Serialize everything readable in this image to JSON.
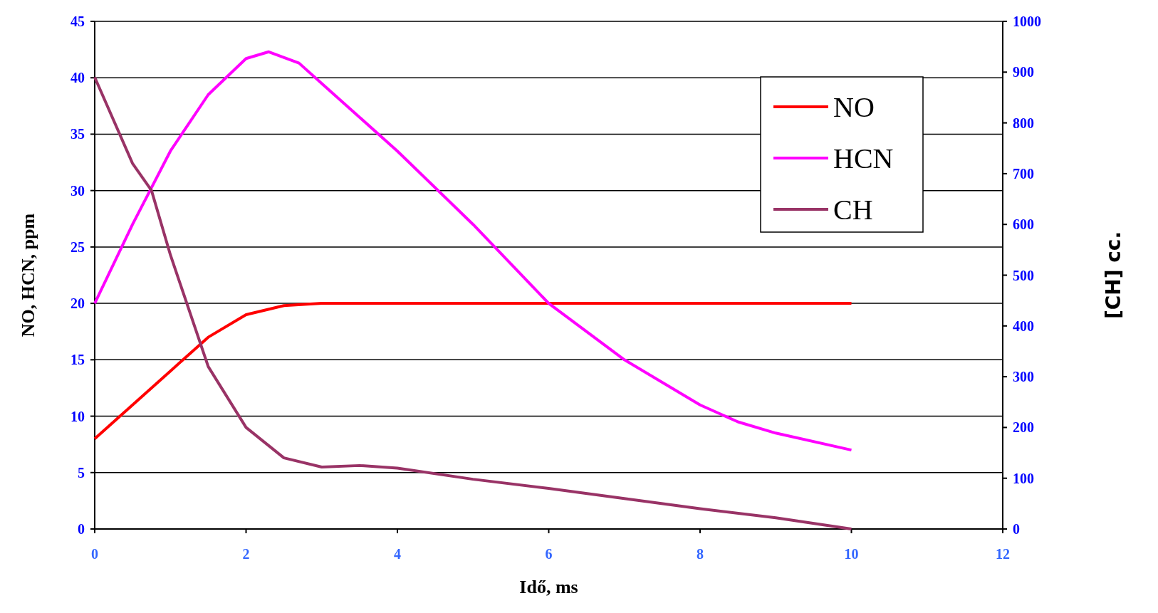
{
  "chart_data": {
    "type": "line",
    "xlabel": "Idő, ms",
    "ylabel": "NO, HCN, ppm",
    "y2label": "[CH] cc.",
    "xlim": [
      0,
      12
    ],
    "xticks": [
      0,
      2,
      4,
      6,
      8,
      10,
      12
    ],
    "ylim": [
      0,
      45
    ],
    "yticks": [
      0,
      5,
      10,
      15,
      20,
      25,
      30,
      35,
      40,
      45
    ],
    "y2lim": [
      0,
      1000
    ],
    "y2ticks": [
      0,
      100,
      200,
      300,
      400,
      500,
      600,
      700,
      800,
      900,
      1000
    ],
    "grid": "y",
    "legend": "top right",
    "line_style": "solid",
    "series": [
      {
        "name": "NO",
        "color": "#ff0000",
        "x": [
          0,
          0.5,
          1,
          1.5,
          2,
          2.5,
          3,
          3.5,
          4,
          5,
          6,
          7,
          8,
          9,
          10
        ],
        "values": [
          8,
          11,
          14,
          17,
          19,
          19.8,
          20,
          20,
          20,
          20,
          20,
          20,
          20,
          20,
          20
        ]
      },
      {
        "name": "HCN",
        "color": "#ff00ff",
        "x": [
          0,
          0.5,
          1,
          1.5,
          2,
          2.3,
          2.7,
          3,
          3.5,
          4,
          5,
          6,
          7,
          8,
          8.5,
          9,
          10
        ],
        "values": [
          20,
          27,
          33.5,
          38.5,
          41.7,
          42.3,
          41.3,
          39.5,
          36.5,
          33.5,
          27,
          20,
          15,
          11,
          9.5,
          8.5,
          7
        ]
      },
      {
        "name": "CH",
        "color": "#993366",
        "axis": "y2",
        "x": [
          0,
          0.5,
          0.75,
          1,
          1.5,
          2,
          2.5,
          3,
          3.5,
          4,
          5,
          6,
          7,
          8,
          9,
          10
        ],
        "values": [
          890,
          720,
          667,
          540,
          320,
          200,
          140,
          122,
          125,
          120,
          98,
          80,
          60,
          40,
          22,
          0
        ]
      }
    ]
  }
}
